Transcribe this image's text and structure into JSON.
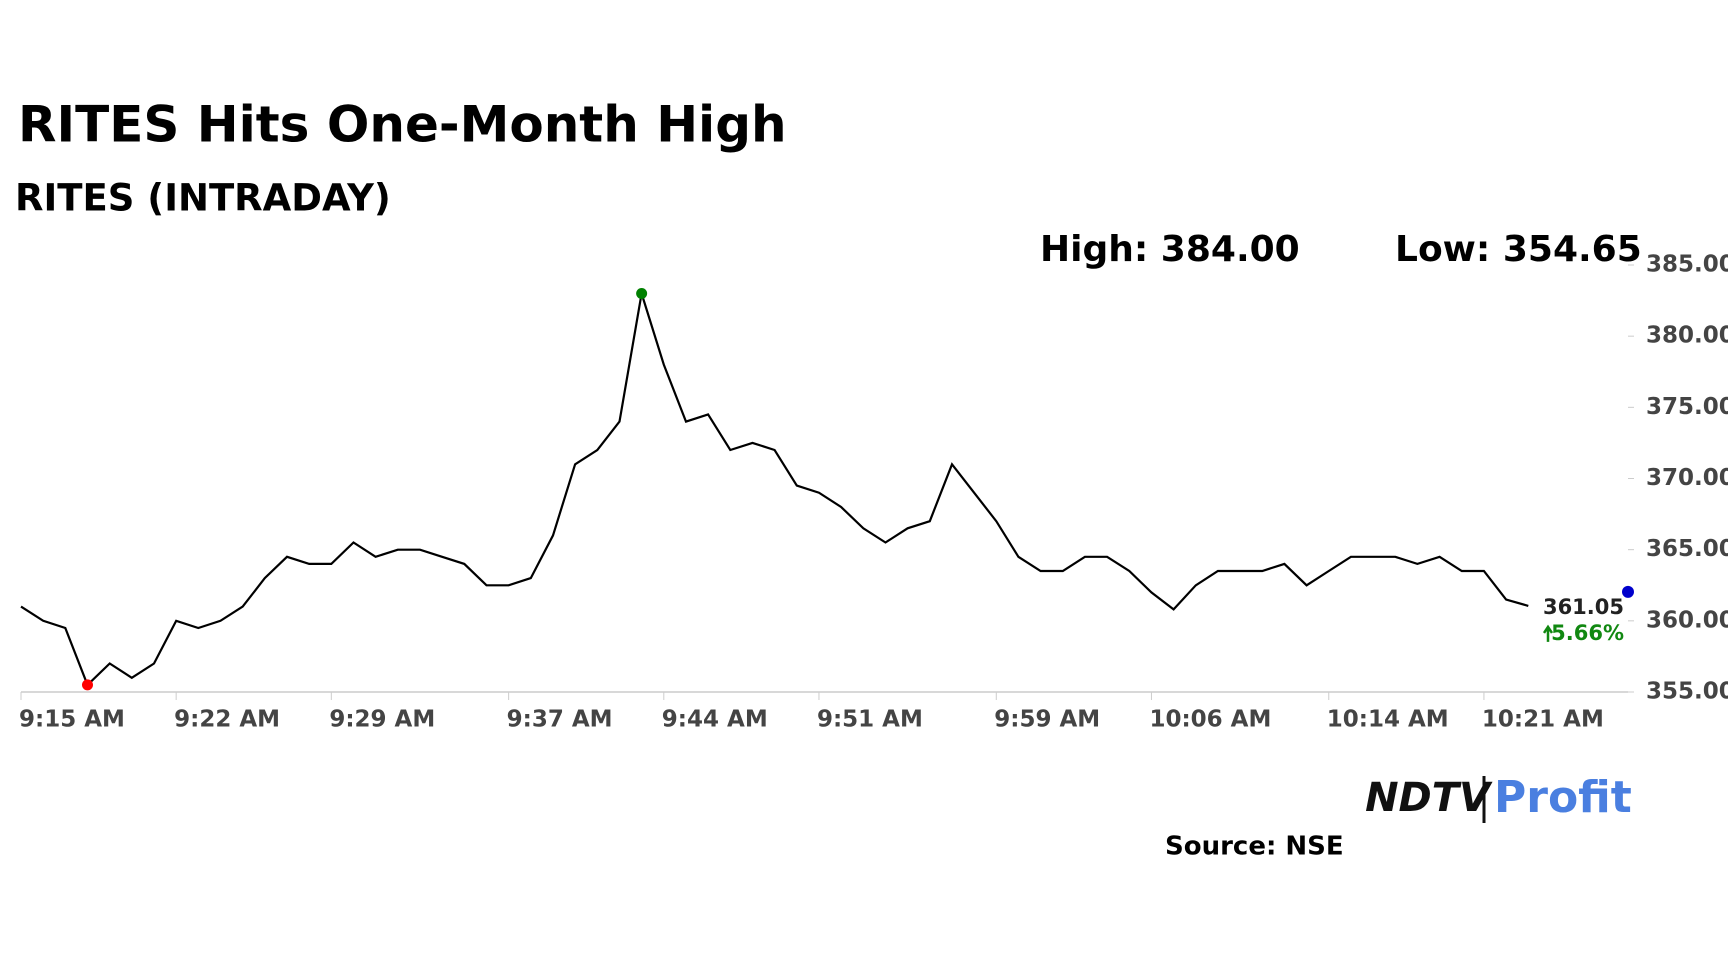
{
  "chart_data": {
    "type": "line",
    "title": "RITES Hits One-Month High",
    "subtitle": "RITES (INTRADAY)",
    "high_label": "High: 384.00",
    "low_label": "Low: 354.65",
    "change_label": "5.66%",
    "source": "Source: NSE",
    "logo_left": "NDTV",
    "logo_right": "Profit",
    "color": "#000000",
    "high_color": "#008000",
    "low_color": "#ff0000",
    "last_color": "#0000cc",
    "categories": [
      "9:15 AM",
      null,
      null,
      null,
      null,
      null,
      null,
      "9:22 AM",
      null,
      null,
      null,
      null,
      null,
      null,
      "9:29 AM",
      null,
      null,
      null,
      null,
      null,
      null,
      null,
      "9:37 AM",
      null,
      null,
      null,
      null,
      null,
      null,
      "9:44 AM",
      null,
      null,
      null,
      null,
      null,
      null,
      "9:51 AM",
      null,
      null,
      null,
      null,
      null,
      null,
      null,
      "9:59 AM",
      null,
      null,
      null,
      null,
      null,
      null,
      "10:06 AM",
      null,
      null,
      null,
      null,
      null,
      null,
      null,
      "10:14 AM",
      null,
      null,
      null,
      null,
      null,
      null,
      "10:21 AM",
      null,
      null,
      null,
      null,
      null,
      null
    ],
    "values": [
      361,
      360,
      359.5,
      355.5,
      357,
      356,
      357,
      360,
      359.5,
      360,
      361,
      363,
      364.5,
      364,
      364,
      365.5,
      364.5,
      365,
      365,
      364.5,
      364,
      362.5,
      362.5,
      363,
      366,
      371,
      372,
      374,
      383,
      378,
      374,
      374.5,
      372,
      372.5,
      372,
      369.5,
      369,
      368,
      366.5,
      365.5,
      366.5,
      367,
      371,
      369,
      367,
      364.5,
      363.5,
      363.5,
      364.5,
      364.5,
      363.5,
      362,
      360.8,
      362.5,
      363.5,
      363.5,
      363.5,
      364,
      362.5,
      363.5,
      364.5,
      364.5,
      364.5,
      364,
      364.5,
      363.5,
      363.5,
      361.5,
      361.05,
      null,
      null,
      null,
      null
    ],
    "ylim": [
      355,
      385
    ],
    "yticks": [
      {
        "value": 355,
        "label": "355.00"
      },
      {
        "value": 360,
        "label": "360.00"
      },
      {
        "value": 365,
        "label": "365.00"
      },
      {
        "value": 370,
        "label": "370.00"
      },
      {
        "value": 375,
        "label": "375.00"
      },
      {
        "value": 380,
        "label": "380.00"
      },
      {
        "value": 385,
        "label": "385.00"
      }
    ]
  }
}
